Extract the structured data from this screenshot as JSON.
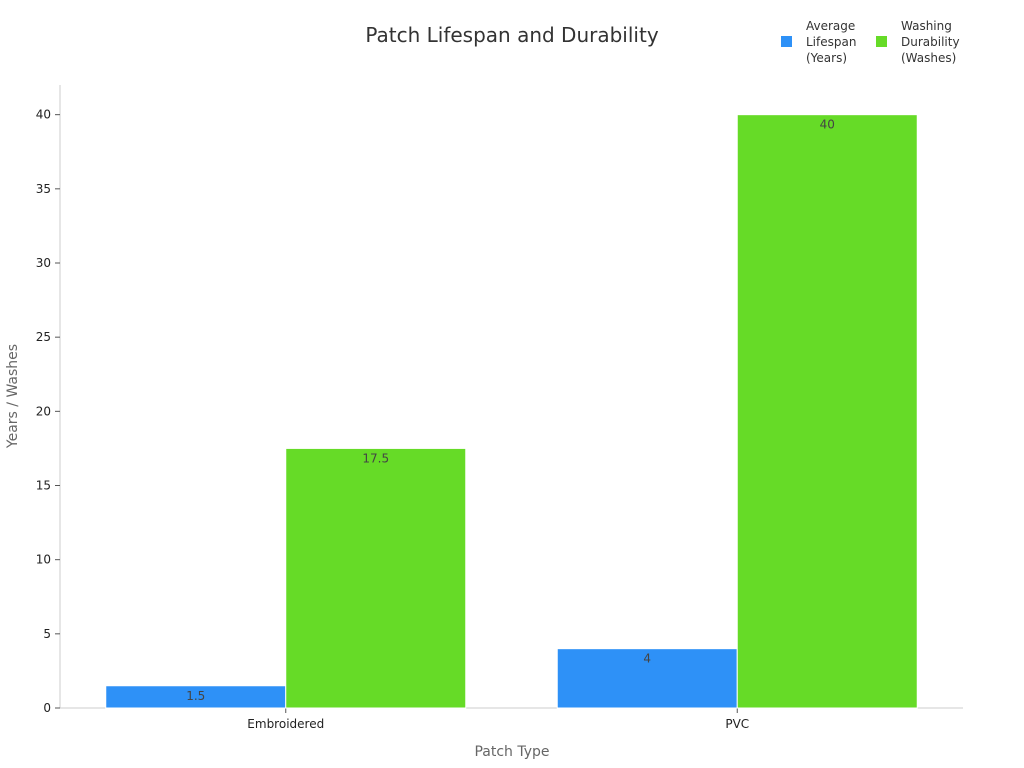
{
  "chart_data": {
    "type": "bar",
    "title": "Patch Lifespan and Durability",
    "xlabel": "Patch Type",
    "ylabel": "Years / Washes",
    "categories": [
      "Embroidered",
      "PVC"
    ],
    "series": [
      {
        "name": "Average Lifespan (Years)",
        "legend_lines": [
          "Average",
          "Lifespan",
          "(Years)"
        ],
        "color": "#2e91f7",
        "values": [
          1.5,
          4
        ],
        "value_labels": [
          "1.5",
          "4"
        ]
      },
      {
        "name": "Washing Durability (Washes)",
        "legend_lines": [
          "Washing",
          "Durability",
          "(Washes)"
        ],
        "color": "#66db27",
        "values": [
          17.5,
          40
        ],
        "value_labels": [
          "17.5",
          "40"
        ]
      }
    ],
    "ylim": [
      0,
      42
    ],
    "yticks": [
      0,
      5,
      10,
      15,
      20,
      25,
      30,
      35,
      40
    ],
    "ytick_labels": [
      "0",
      "5",
      "10",
      "15",
      "20",
      "25",
      "30",
      "35",
      "40"
    ],
    "grid": false,
    "legend_position": "top-right"
  }
}
